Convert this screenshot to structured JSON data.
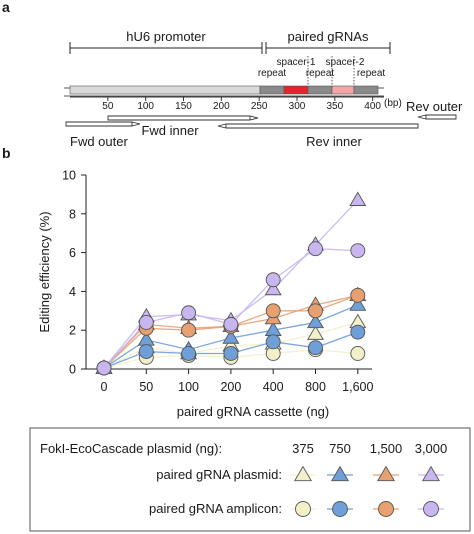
{
  "panel_a": {
    "label": "a",
    "region_labels": {
      "promoter": "hU6 promoter",
      "grnas": "paired gRNAs"
    },
    "element_labels": [
      {
        "name": "repeat-1",
        "text": "repeat",
        "bp": 274
      },
      {
        "name": "spacer-1",
        "text": "spacer-1",
        "bp": 318
      },
      {
        "name": "repeat-2",
        "text": "repeat",
        "bp": 337
      },
      {
        "name": "spacer-2",
        "text": "spacer-2",
        "bp": 378
      },
      {
        "name": "repeat-3",
        "text": "repeat",
        "bp": 398
      }
    ],
    "scale_ticks": [
      50,
      100,
      150,
      200,
      250,
      300,
      350,
      400
    ],
    "scale_unit": "(bp)",
    "primers": {
      "fwd_outer": "Fwd outer",
      "fwd_inner": "Fwd inner",
      "rev_inner": "Rev inner",
      "rev_outer": "Rev outer"
    },
    "colors": {
      "promoter_bar": "#d9d9d9",
      "repeat": "#8a8a8a",
      "spacer1": "#e0262b",
      "spacer2": "#f4a6a6"
    }
  },
  "panel_b_label": "b",
  "chart_data": {
    "type": "scatter",
    "x_categories": [
      "0",
      "50",
      "100",
      "200",
      "400",
      "800",
      "1,600"
    ],
    "xlabel": "paired gRNA cassette (ng)",
    "ylabel": "Editing efficiency (%)",
    "ylim": [
      0,
      10
    ],
    "y_ticks": [
      0,
      2,
      4,
      6,
      8,
      10
    ],
    "grid": false,
    "series": [
      {
        "id": "p375",
        "shape": "triangle",
        "color": "#f2f0c9",
        "values": [
          0.05,
          1.1,
          0.8,
          1.2,
          1.3,
          1.8,
          2.4
        ]
      },
      {
        "id": "p750",
        "shape": "triangle",
        "color": "#6f9fd8",
        "values": [
          0.05,
          1.5,
          1.0,
          1.6,
          2.0,
          2.4,
          3.3
        ]
      },
      {
        "id": "p1500",
        "shape": "triangle",
        "color": "#e8a071",
        "values": [
          0.05,
          2.3,
          2.1,
          2.2,
          2.6,
          3.3,
          3.8
        ]
      },
      {
        "id": "p3000",
        "shape": "triangle",
        "color": "#c7b6ef",
        "values": [
          0.05,
          2.7,
          2.8,
          2.5,
          4.1,
          6.4,
          8.7
        ]
      },
      {
        "id": "a375",
        "shape": "circle",
        "color": "#f2f0c9",
        "values": [
          0.05,
          0.6,
          0.7,
          0.6,
          0.8,
          1.0,
          0.8
        ]
      },
      {
        "id": "a750",
        "shape": "circle",
        "color": "#6f9fd8",
        "values": [
          0.05,
          0.9,
          0.8,
          0.8,
          1.4,
          1.1,
          1.9
        ]
      },
      {
        "id": "a1500",
        "shape": "circle",
        "color": "#e8a071",
        "values": [
          0.05,
          2.1,
          2.0,
          2.2,
          3.0,
          3.0,
          3.8
        ]
      },
      {
        "id": "a3000",
        "shape": "circle",
        "color": "#c7b6ef",
        "values": [
          0.05,
          2.4,
          2.9,
          2.3,
          4.6,
          6.2,
          6.1
        ]
      }
    ],
    "legend": {
      "placement": "bottom",
      "header_label": "FokI-EcoCascade plasmid (ng):",
      "doses": [
        "375",
        "750",
        "1,500",
        "3,000"
      ],
      "rows": [
        {
          "label": "paired gRNA plasmid:",
          "shape": "triangle"
        },
        {
          "label": "paired gRNA amplicon:",
          "shape": "circle"
        }
      ]
    }
  }
}
